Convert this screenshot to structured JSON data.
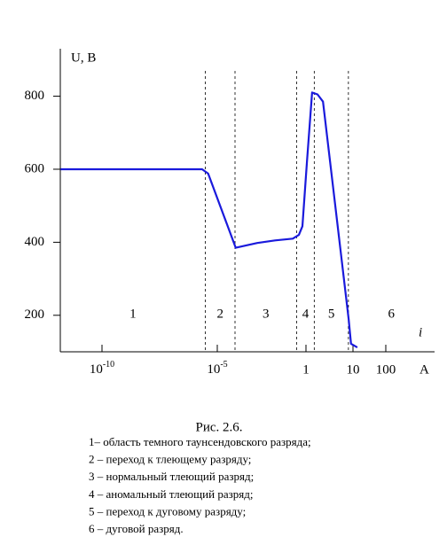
{
  "chart_data": {
    "type": "line",
    "y_label": "U, B",
    "x_label": "A",
    "curve_label": "i",
    "x_scale": "log",
    "color": "#1a1adc",
    "x": [
      1.6e-12,
      2.2e-06,
      4e-06,
      0.00011,
      0.0018,
      0.018,
      0.18,
      0.4,
      0.63,
      1.05,
      1.35,
      1.76,
      2.3,
      8.1,
      9.1,
      13.6
    ],
    "values": [
      600,
      600,
      588,
      385,
      398,
      405,
      410,
      420,
      444,
      620,
      810,
      805,
      785,
      190,
      122,
      112
    ],
    "xlim": [
      1.6e-12,
      3000
    ],
    "ylim": [
      100,
      930
    ],
    "xticks": [
      {
        "value": 1e-10,
        "label": "10",
        "sup": "-10"
      },
      {
        "value": 1e-05,
        "label": "10",
        "sup": "-5"
      },
      1,
      10,
      100
    ],
    "yticks": [
      200,
      400,
      600,
      800
    ],
    "regions": {
      "labels": [
        "1",
        "2",
        "3",
        "4",
        "5",
        "6"
      ],
      "boundaries": [
        3e-06,
        0.0001,
        0.3,
        1.5,
        8
      ]
    }
  },
  "caption": {
    "title": "Рис. 2.6.",
    "items": [
      "1– область темного таунсендовского разряда;",
      "2 – переход к тлеющему разряду;",
      "3 – нормальный тлеющий разряд;",
      "4 – аномальный тлеющий разряд;",
      "5 – переход к дуговому разряду;",
      "6 – дуговой разряд."
    ]
  }
}
